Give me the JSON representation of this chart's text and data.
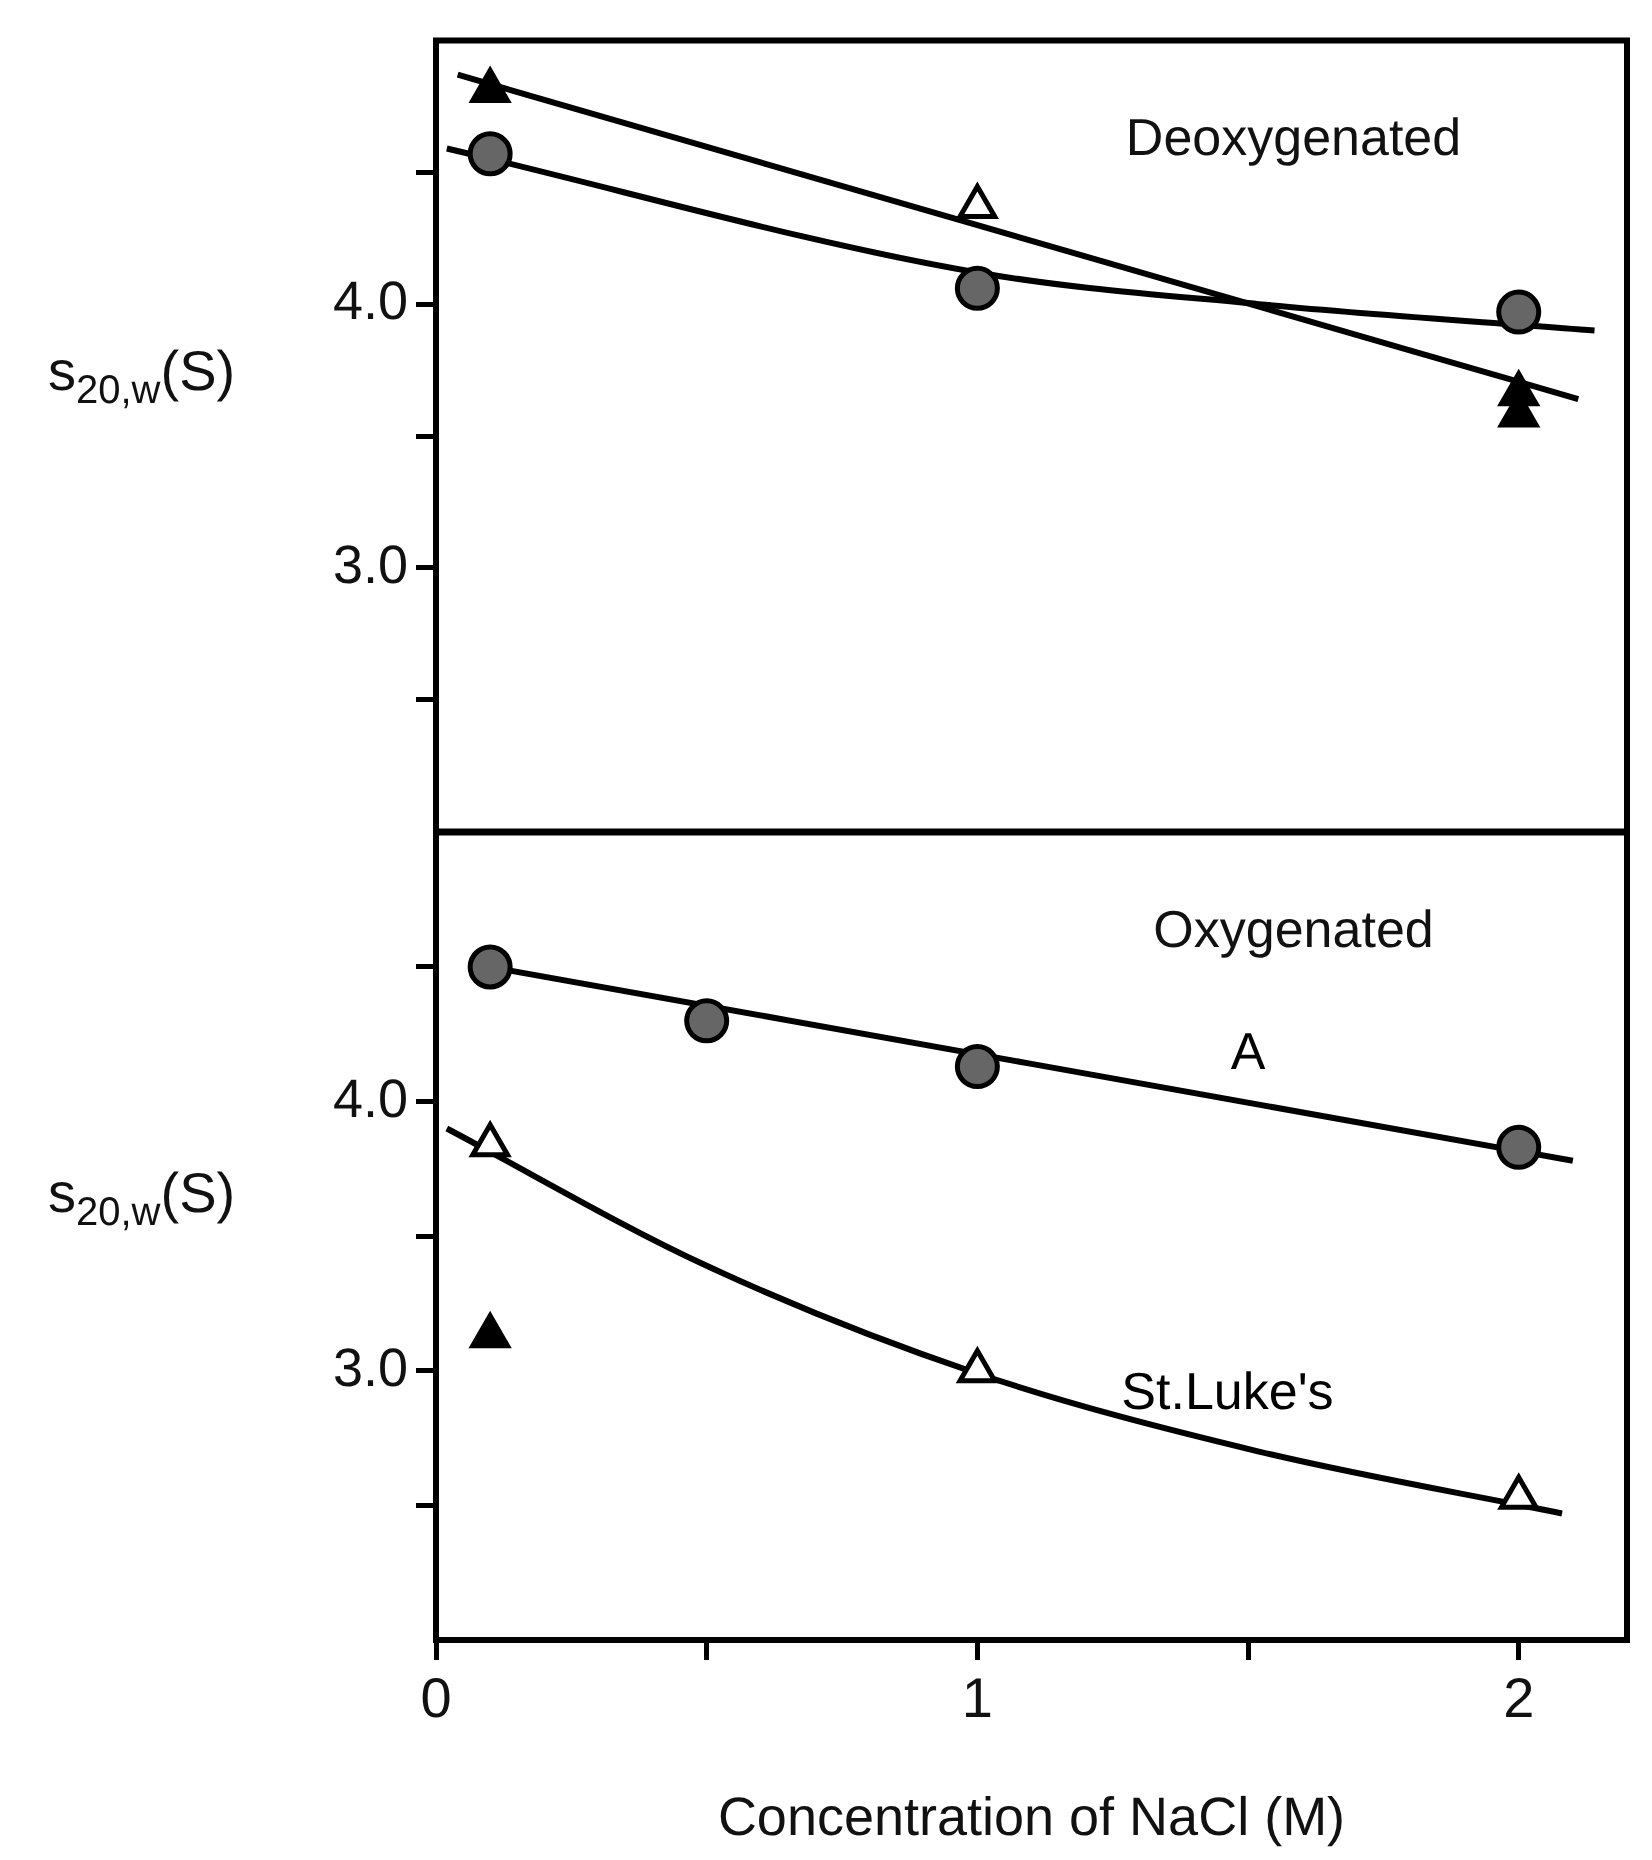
{
  "chart_data": [
    {
      "type": "scatter",
      "ylabel": "s$_{20,w}$(S)",
      "annotations": [
        "Deoxygenated"
      ],
      "xlim": [
        0,
        2.2
      ],
      "ylim": [
        2.0,
        5.0
      ],
      "yticks": [
        {
          "value": 2.5,
          "label": null
        },
        {
          "value": 3.0,
          "label": "3.0"
        },
        {
          "value": 3.5,
          "label": null
        },
        {
          "value": 4.0,
          "label": "4.0"
        },
        {
          "value": 4.5,
          "label": null
        }
      ],
      "tick_labels": "y",
      "legend": false,
      "grid": false,
      "series": [
        {
          "type": "line",
          "x": [
            0.04,
            2.11
          ],
          "values": [
            4.87,
            3.64
          ],
          "color": "#000000",
          "marker": "none"
        },
        {
          "type": "line",
          "x": [
            0.02,
            1.0,
            1.52,
            2.14
          ],
          "values": [
            4.59,
            4.12,
            4.0,
            3.9
          ],
          "color": "#000000",
          "marker": "none"
        },
        {
          "type": "scatter",
          "x": [
            0.1,
            1,
            2
          ],
          "values": [
            4.57,
            4.06,
            3.97
          ],
          "color": "#666666",
          "marker": "circle"
        },
        {
          "type": "scatter",
          "x": [
            0.1,
            2,
            2
          ],
          "values": [
            4.81,
            3.66,
            3.58
          ],
          "color": "#000000",
          "marker": "triangle"
        },
        {
          "type": "scatter",
          "x": [
            1
          ],
          "values": [
            4.37
          ],
          "color": "#ffffff",
          "marker": "triangle"
        }
      ]
    },
    {
      "type": "scatter",
      "ylabel": "s$_{20,w}$(S)",
      "xlabel": "Concentration of NaCl (M)",
      "annotations": [
        "Oxygenated"
      ],
      "xlim": [
        0,
        2.2
      ],
      "ylim": [
        2.0,
        5.0
      ],
      "xticks": [
        0,
        {
          "value": 0.5,
          "label": null
        },
        1,
        {
          "value": 1.5,
          "label": null
        },
        2
      ],
      "yticks": [
        {
          "value": 2.5,
          "label": null
        },
        {
          "value": 3.0,
          "label": "3.0"
        },
        {
          "value": 3.5,
          "label": null
        },
        {
          "value": 4.0,
          "label": "4.0"
        },
        {
          "value": 4.5,
          "label": null
        }
      ],
      "legend": false,
      "grid": false,
      "series": [
        {
          "type": "line",
          "name": "A",
          "x": [
            0.1,
            2.1
          ],
          "values": [
            4.5,
            3.78
          ],
          "color": "#000000",
          "marker": "none"
        },
        {
          "type": "line",
          "name": "St.Luke's",
          "x": [
            0.02,
            0.5,
            1.0,
            1.52,
            2.08
          ],
          "values": [
            3.9,
            3.39,
            2.99,
            2.7,
            2.47
          ],
          "color": "#000000",
          "marker": "none"
        },
        {
          "type": "scatter",
          "x": [
            0.1,
            0.5,
            1,
            2
          ],
          "values": [
            4.5,
            4.3,
            4.13,
            3.83
          ],
          "color": "#666666",
          "marker": "circle"
        },
        {
          "type": "scatter",
          "x": [
            0.1,
            1,
            2
          ],
          "values": [
            3.84,
            3.0,
            2.53
          ],
          "color": "#ffffff",
          "marker": "triangle"
        },
        {
          "type": "scatter",
          "x": [
            0.1
          ],
          "values": [
            3.13
          ],
          "color": "#000000",
          "marker": "triangle"
        }
      ]
    }
  ]
}
